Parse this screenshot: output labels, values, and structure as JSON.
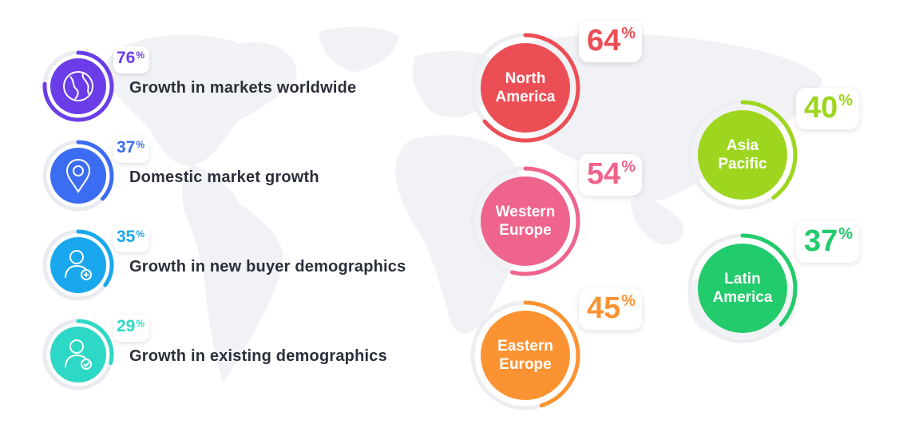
{
  "chart_data": [
    {
      "type": "bar",
      "categories": [
        "Growth in markets worldwide",
        "Domestic market growth",
        "Growth in new buyer demographics",
        "Growth in existing demographics"
      ],
      "values": [
        76,
        37,
        35,
        29
      ],
      "value_labels": [
        "76",
        "37",
        "35",
        "29"
      ],
      "unit": "%",
      "icons": [
        "globe-icon",
        "map-pin-icon",
        "user-add-icon",
        "user-check-icon"
      ],
      "colors": [
        "#6a3de8",
        "#3b6cf2",
        "#19a8ee",
        "#2ed8c6"
      ]
    },
    {
      "type": "pie",
      "categories": [
        "North America",
        "Asia Pacific",
        "Western Europe",
        "Latin America",
        "Eastern Europe"
      ],
      "label_lines": [
        [
          "North",
          "America"
        ],
        [
          "Asia",
          "Pacific"
        ],
        [
          "Western",
          "Europe"
        ],
        [
          "Latin",
          "America"
        ],
        [
          "Eastern",
          "Europe"
        ]
      ],
      "values": [
        64,
        40,
        54,
        37,
        45
      ],
      "value_labels": [
        "64",
        "40",
        "54",
        "37",
        "45"
      ],
      "unit": "%",
      "colors": [
        "#ec4e55",
        "#9ed61f",
        "#ef648c",
        "#22cb6b",
        "#fb9333"
      ]
    }
  ]
}
